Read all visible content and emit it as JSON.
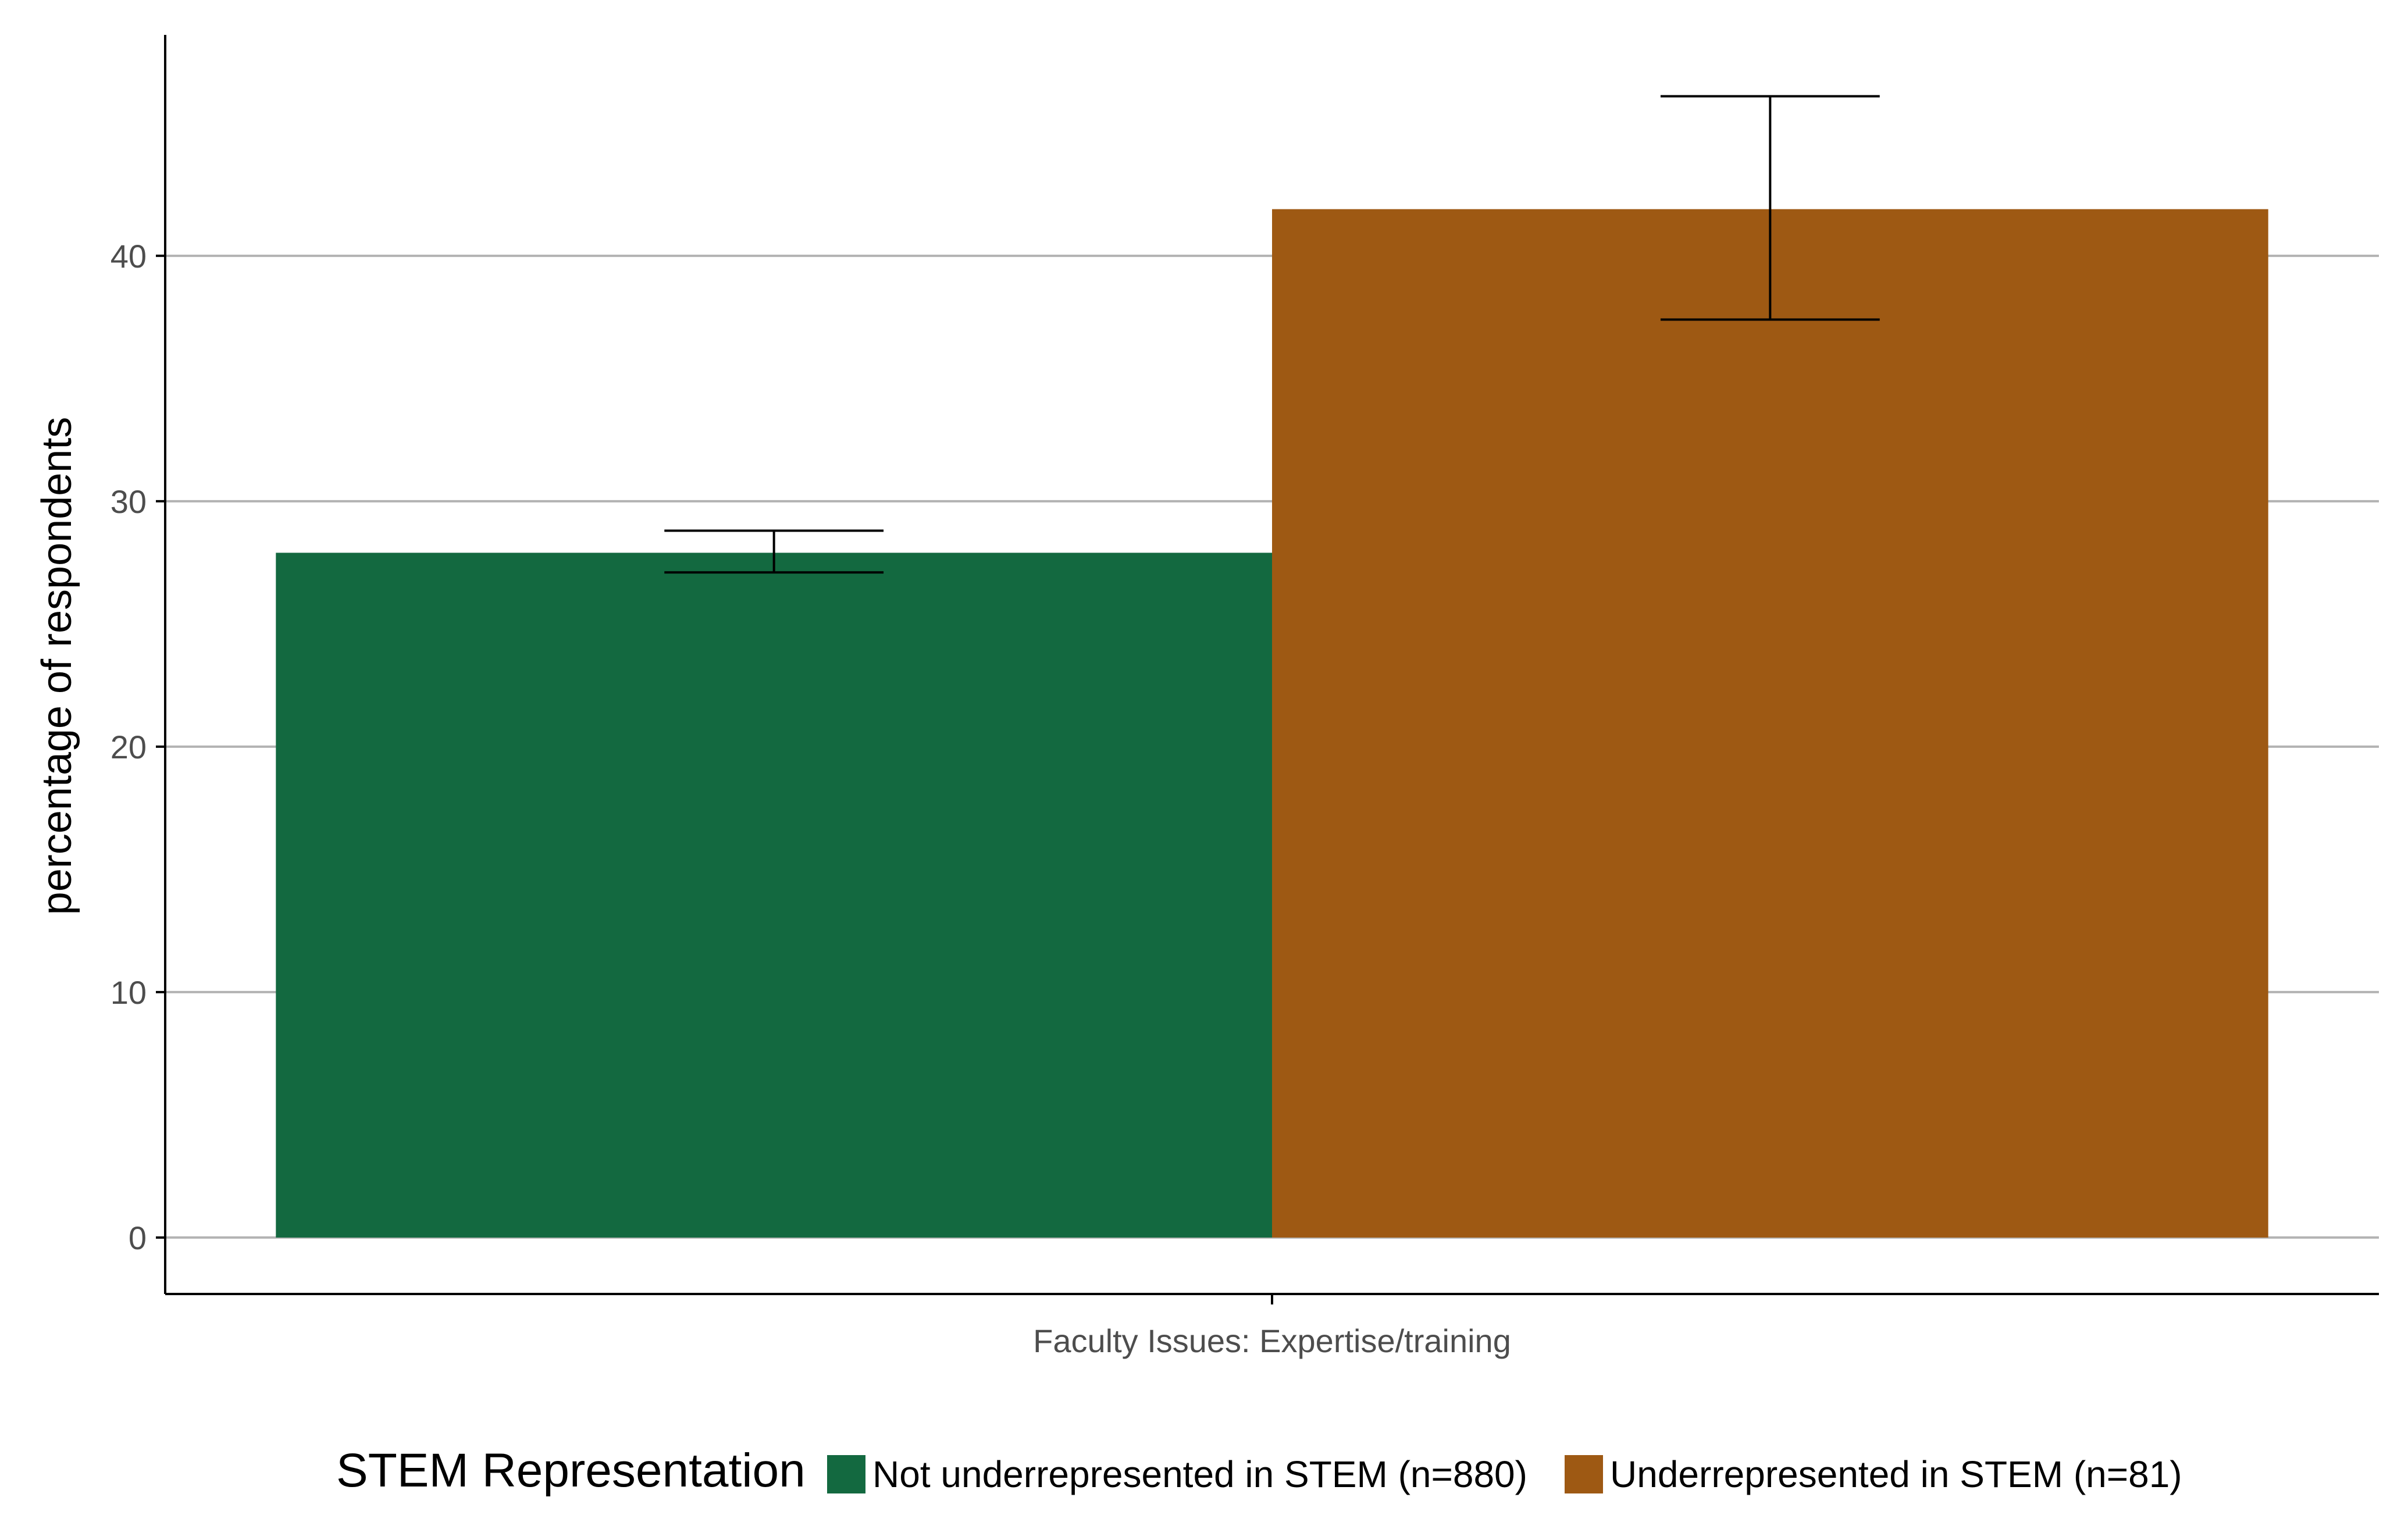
{
  "chart_data": {
    "type": "bar",
    "title": "",
    "xlabel": "",
    "ylabel": "percentage of respondents",
    "categories": [
      "Faculty Issues: Expertise/training"
    ],
    "ylim": [
      -2.3,
      49
    ],
    "yticks": [
      0,
      10,
      20,
      30,
      40
    ],
    "grid": "horizontal major",
    "legend": {
      "title": "STEM Representation",
      "placement": "bottom"
    },
    "series": [
      {
        "name": "Not underrepresented in STEM (n=880)",
        "color": "#136940",
        "values": [
          27.9
        ],
        "error_low": [
          27.1
        ],
        "error_high": [
          28.8
        ]
      },
      {
        "name": "Underrepresented in STEM (n=81)",
        "color": "#9e5913",
        "values": [
          41.9
        ],
        "error_low": [
          37.4
        ],
        "error_high": [
          46.5
        ]
      }
    ]
  },
  "colors": {
    "grid": "#b3b3b3",
    "axis": "#000000",
    "tick_text": "#4d4d4d"
  }
}
